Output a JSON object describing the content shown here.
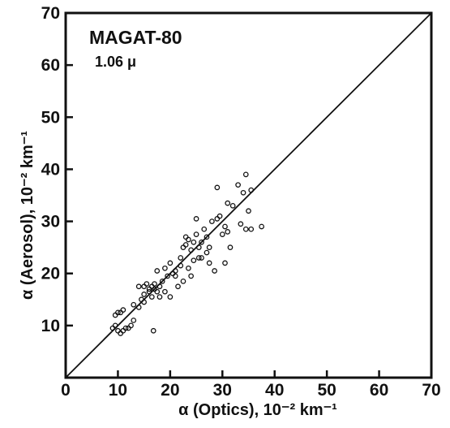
{
  "chart_data": {
    "type": "scatter",
    "title": "",
    "annotations": [
      "MAGAT-80",
      "1.06 μ"
    ],
    "xlabel": "α (Optics), 10⁻² km⁻¹",
    "ylabel": "α (Aerosol), 10⁻² km⁻¹",
    "xlim": [
      0,
      70
    ],
    "ylim": [
      0,
      70
    ],
    "xticks": [
      "0",
      "10",
      "20",
      "30",
      "40",
      "50",
      "60",
      "70"
    ],
    "yticks": [
      "10",
      "20",
      "30",
      "40",
      "50",
      "60",
      "70"
    ],
    "grid": false,
    "reference_line": {
      "x": [
        0,
        70
      ],
      "y": [
        0,
        70
      ]
    },
    "points": [
      [
        9,
        9.5
      ],
      [
        9.5,
        10
      ],
      [
        9.5,
        12
      ],
      [
        10,
        9
      ],
      [
        10,
        12.5
      ],
      [
        10.5,
        8.5
      ],
      [
        10.5,
        12.5
      ],
      [
        11,
        9
      ],
      [
        11,
        13
      ],
      [
        11.5,
        9.5
      ],
      [
        12,
        9.5
      ],
      [
        12.5,
        10
      ],
      [
        13,
        11
      ],
      [
        13,
        14
      ],
      [
        14,
        13.5
      ],
      [
        14,
        17.5
      ],
      [
        14.5,
        15
      ],
      [
        15,
        14.5
      ],
      [
        15,
        16
      ],
      [
        15,
        17.5
      ],
      [
        15.5,
        18
      ],
      [
        16,
        16.5
      ],
      [
        16,
        17
      ],
      [
        16.5,
        17.5
      ],
      [
        16.5,
        15.5
      ],
      [
        16.8,
        9
      ],
      [
        17,
        17
      ],
      [
        17,
        18
      ],
      [
        17.5,
        16.5
      ],
      [
        17.5,
        20.5
      ],
      [
        18,
        17.5
      ],
      [
        18,
        15.5
      ],
      [
        18.5,
        18.5
      ],
      [
        19,
        21
      ],
      [
        19,
        16.5
      ],
      [
        19.5,
        19.5
      ],
      [
        20,
        22
      ],
      [
        20,
        15.5
      ],
      [
        20.5,
        20
      ],
      [
        21,
        20.5
      ],
      [
        21,
        19.5
      ],
      [
        21.5,
        17.5
      ],
      [
        22,
        21.5
      ],
      [
        22,
        23
      ],
      [
        22.5,
        18.5
      ],
      [
        22.5,
        25
      ],
      [
        23,
        25.5
      ],
      [
        23,
        27
      ],
      [
        23.5,
        21
      ],
      [
        23.5,
        26.5
      ],
      [
        24,
        24.5
      ],
      [
        24,
        19.5
      ],
      [
        24.5,
        26
      ],
      [
        24.5,
        22.5
      ],
      [
        25,
        27.5
      ],
      [
        25,
        30.5
      ],
      [
        25.5,
        25
      ],
      [
        25.5,
        23
      ],
      [
        26,
        23
      ],
      [
        26,
        26
      ],
      [
        26.5,
        28.5
      ],
      [
        27,
        24
      ],
      [
        27,
        27
      ],
      [
        27.5,
        25
      ],
      [
        27.5,
        22
      ],
      [
        28,
        30
      ],
      [
        28.5,
        20.5
      ],
      [
        29,
        30.5
      ],
      [
        29,
        36.5
      ],
      [
        29.5,
        31
      ],
      [
        30,
        27.5
      ],
      [
        30.5,
        29
      ],
      [
        30.5,
        22
      ],
      [
        31,
        33.5
      ],
      [
        31,
        28
      ],
      [
        31.5,
        25
      ],
      [
        32,
        33
      ],
      [
        33,
        37
      ],
      [
        33.5,
        29.5
      ],
      [
        34,
        35.5
      ],
      [
        34.5,
        28.5
      ],
      [
        34.5,
        39
      ],
      [
        35,
        32
      ],
      [
        35.5,
        36
      ],
      [
        35.5,
        28.5
      ],
      [
        37.5,
        29
      ]
    ]
  }
}
